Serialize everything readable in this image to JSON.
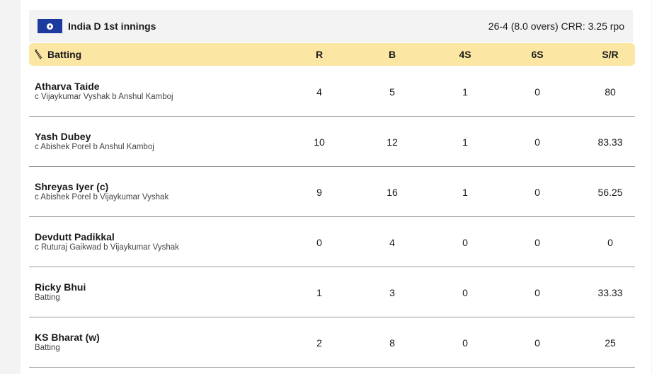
{
  "innings": {
    "title": "India D 1st innings",
    "score": "26-4 (8.0 overs) CRR: 3.25 rpo"
  },
  "batting": {
    "label": "Batting",
    "columns": {
      "r": "R",
      "b": "B",
      "fours": "4S",
      "sixes": "6S",
      "sr": "S/R"
    },
    "rows": [
      {
        "name": "Atharva Taide",
        "dismissal": "c Vijaykumar Vyshak b Anshul Kamboj",
        "r": "4",
        "b": "5",
        "fours": "1",
        "sixes": "0",
        "sr": "80"
      },
      {
        "name": "Yash Dubey",
        "dismissal": "c Abishek Porel b Anshul Kamboj",
        "r": "10",
        "b": "12",
        "fours": "1",
        "sixes": "0",
        "sr": "83.33"
      },
      {
        "name": "Shreyas Iyer (c)",
        "dismissal": "c Abishek Porel b Vijaykumar Vyshak",
        "r": "9",
        "b": "16",
        "fours": "1",
        "sixes": "0",
        "sr": "56.25"
      },
      {
        "name": "Devdutt Padikkal",
        "dismissal": "c Ruturaj Gaikwad b Vijaykumar Vyshak",
        "r": "0",
        "b": "4",
        "fours": "0",
        "sixes": "0",
        "sr": "0"
      },
      {
        "name": "Ricky Bhui",
        "dismissal": "Batting",
        "r": "1",
        "b": "3",
        "fours": "0",
        "sixes": "0",
        "sr": "33.33"
      },
      {
        "name": "KS Bharat (w)",
        "dismissal": "Batting",
        "r": "2",
        "b": "8",
        "fours": "0",
        "sixes": "0",
        "sr": "25"
      }
    ]
  },
  "colors": {
    "flag": "#1d3a9e",
    "header_bg": "#fbe7a3",
    "innings_bg": "#f3f3f3"
  }
}
